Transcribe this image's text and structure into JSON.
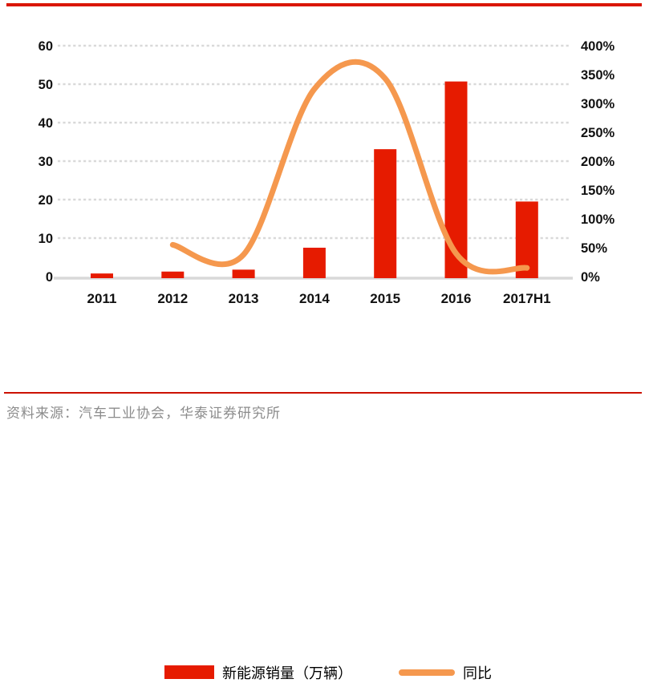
{
  "header": {
    "top_rule_color": "#da1600"
  },
  "footer": {
    "rule_color": "#cc1100",
    "source_note": "资料来源：汽车工业协会，华泰证券研究所"
  },
  "chart_data": {
    "type": "combo-bar-line",
    "title": "",
    "categories": [
      "2011",
      "2012",
      "2013",
      "2014",
      "2015",
      "2016",
      "2017H1"
    ],
    "series": [
      {
        "name": "新能源销量（万辆）",
        "chart_type": "bar",
        "axis": "left",
        "color": "#e61b00",
        "values": [
          0.8,
          1.3,
          1.8,
          7.5,
          33.1,
          50.7,
          19.5
        ]
      },
      {
        "name": "同比",
        "chart_type": "smoothed-line",
        "axis": "right",
        "color": "#f5984e",
        "unit": "%",
        "values": [
          null,
          55,
          38,
          325,
          343,
          40,
          15
        ]
      }
    ],
    "left_axis": {
      "min": 0,
      "max": 60,
      "step": 10,
      "tick_labels": [
        "60",
        "50",
        "40",
        "30",
        "20",
        "10",
        "0"
      ]
    },
    "right_axis": {
      "min": 0,
      "max": 400,
      "step": 50,
      "unit": "%",
      "tick_labels": [
        "400%",
        "350%",
        "300%",
        "250%",
        "200%",
        "150%",
        "100%",
        "50%",
        "0%"
      ]
    },
    "grid": "horizontal-dashed",
    "grid_color": "#d9d9d9",
    "axis_line_color": "#d9d9d9",
    "tick_text_color": "#111111",
    "legend_position": "bottom"
  }
}
